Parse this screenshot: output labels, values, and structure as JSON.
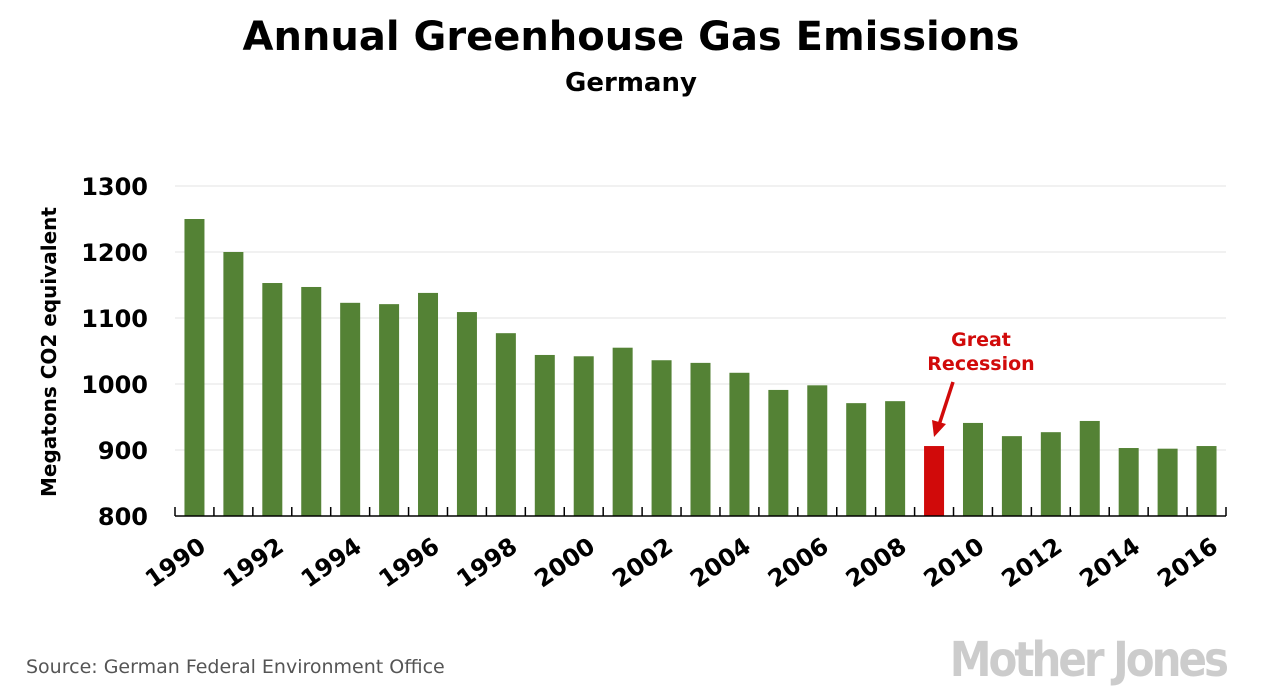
{
  "chart_data": {
    "type": "bar",
    "title": "Annual Greenhouse Gas Emissions",
    "subtitle": "Germany",
    "ylabel": "Megatons CO2 equivalent",
    "xlabel": "",
    "ylim": [
      800,
      1300
    ],
    "yticks": [
      800,
      900,
      1000,
      1100,
      1200,
      1300
    ],
    "grid": true,
    "categories": [
      1990,
      1991,
      1992,
      1993,
      1994,
      1995,
      1996,
      1997,
      1998,
      1999,
      2000,
      2001,
      2002,
      2003,
      2004,
      2005,
      2006,
      2007,
      2008,
      2009,
      2010,
      2011,
      2012,
      2013,
      2014,
      2015,
      2016
    ],
    "xtick_labels": [
      "1990",
      "1992",
      "1994",
      "1996",
      "1998",
      "2000",
      "2002",
      "2004",
      "2006",
      "2008",
      "2010",
      "2012",
      "2014",
      "2016"
    ],
    "values": [
      1250,
      1200,
      1153,
      1147,
      1123,
      1121,
      1138,
      1109,
      1077,
      1044,
      1042,
      1055,
      1036,
      1032,
      1017,
      991,
      998,
      971,
      974,
      906,
      941,
      921,
      927,
      944,
      903,
      902,
      906
    ],
    "highlight": {
      "category": 2009,
      "color": "#d10a0a"
    },
    "bar_color": "#548235",
    "annotation": {
      "lines": [
        "Great",
        "Recession"
      ],
      "target": 2009,
      "color": "#d10a0a"
    }
  },
  "source": "Source: German Federal Environment Office",
  "logo": "Mother Jones"
}
